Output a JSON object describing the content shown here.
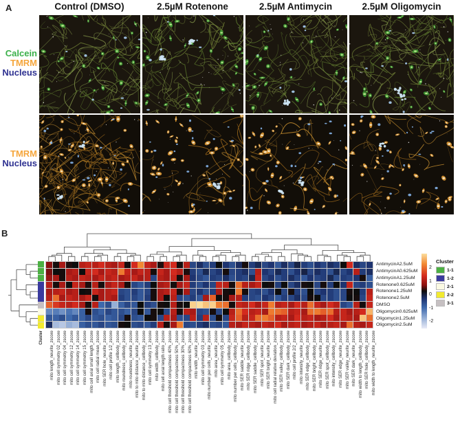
{
  "panel_a": {
    "label": "A",
    "column_headers": [
      "Control (DMSO)",
      "2.5µM Rotenone",
      "2.5µM Antimycin",
      "2.5µM Oligomycin"
    ],
    "row1_labels": [
      {
        "text": "Calcein",
        "color": "#3bb04a"
      },
      {
        "text": "TMRM",
        "color": "#f5a63c"
      },
      {
        "text": "Nucleus",
        "color": "#2e3191"
      }
    ],
    "row2_labels": [
      {
        "text": "TMRM",
        "color": "#f5a63c"
      },
      {
        "text": "Nucleus",
        "color": "#2e3191"
      }
    ]
  },
  "panel_b": {
    "label": "B",
    "cluster_axis_label": "Cluster",
    "legend": {
      "title": "Cluster",
      "entries": [
        {
          "label": "1-1",
          "color": "#4cb043"
        },
        {
          "label": "1-2",
          "color": "#3a3a9e"
        },
        {
          "label": "2-1",
          "color": "#fbfae3"
        },
        {
          "label": "2-2",
          "color": "#f2ea2f"
        },
        {
          "label": "3-1",
          "color": "#c6c0c2"
        }
      ]
    },
    "colorbar": {
      "ticks": [
        "2",
        "1",
        "0",
        "-1",
        "-2"
      ]
    }
  },
  "chart_data": {
    "type": "heatmap",
    "title": "",
    "value_range": [
      -2.5,
      2.5
    ],
    "rows": [
      "AntimycinA2.5uM",
      "AntimycinA0.625uM",
      "AntimycinA1.25uM",
      "Rotenone0.625uM",
      "Rotenone1.25uM",
      "Rotenone2.5uM",
      "DMSO",
      "Oligomycin0.625uM",
      "Oligomycin1.25uM",
      "Oligomycin2.5uM"
    ],
    "row_clusters": [
      "1-1",
      "1-1",
      "1-1",
      "1-2",
      "1-2",
      "1-2",
      "3-1",
      "2-1",
      "2-2",
      "2-2"
    ],
    "columns": [
      "mito length_neurite_zscore",
      "mito cell symmetry 02_zscore",
      "mito cell symmetry 04_zscore",
      "mito cell symmetry 12_zscore",
      "mito cell symmetry 14_zscore",
      "mito cell symmetry 15_zscore",
      "mito cell axial small length_zscore",
      "mito cell radial mean_zscore",
      "mito SER hole_neurite_zscore",
      "mito cell profile 1/2_zscore",
      "mito length_cellbody_zscore",
      "mito roundness_cellbody_zscore",
      "mito roundness_neurite_zscore",
      "mito to mito distance_neurite_zscore",
      "mito to mito distance_cellbody_zscore",
      "mito cell symmetry 13_zscore",
      "mito width_cellbody_zscore",
      "mito cell axial length ratio_zscore",
      "mito cell threshold compactness 40%_zscore",
      "mito cell threshold compactness 50%_zscore",
      "mito cell threshold compactness 30%_zscore",
      "mito cell threshold compactness 60%_zscore",
      "mito width_neurite_zscore",
      "mito cell symmetry 03_zscore",
      "mito number per cells_neurite_zscore",
      "mito area_neurite_zscore",
      "mito cell symmetry 05_zscore",
      "mito area_cellbody_zscore",
      "mito number per cells_cellbody_zscore",
      "mito SER saddle_neurite_zscore",
      "mito SER ridge_cellbody_zscore",
      "mito SER saddle_cellbody_zscore",
      "mito SER spot_neurite_zscore",
      "mito SER bright_neurite_zscore",
      "mito cell radial relative deviation_zscore",
      "mito SER valley_cellbody_zscore",
      "mito SER dark_cellbody_zscore",
      "mito cell profile 2/2_zscore",
      "mito intensity_neurite_zscore",
      "mito SER edge_cellbody_zscore",
      "mito SER bright_cellbody_zscore",
      "mito SER ridge_neurite_zscore",
      "mito SER spot_cellbody_zscore",
      "mito intensity_cellbody_zscore",
      "mito SER edge_neurite_zscore",
      "mito SER valley_neurite_zscore",
      "mito SER dark_neurite_zscore",
      "mito width to length_cellbody_zscore",
      "mito SER hole_cellbody_zscore",
      "mito width to length_neurite_zscore"
    ],
    "values": [
      [
        0.7,
        0.05,
        0.9,
        0.1,
        0.0,
        1.0,
        1.1,
        1.0,
        1.2,
        1.0,
        0.9,
        1.1,
        0.05,
        1.2,
        1.9,
        1.1,
        0.9,
        0.1,
        1.1,
        1.2,
        0.05,
        1.0,
        -0.9,
        -0.6,
        -1.0,
        -0.8,
        0.0,
        -0.7,
        -1.0,
        -0.6,
        0.05,
        -0.8,
        -0.5,
        -0.9,
        -0.7,
        -1.1,
        -0.6,
        -0.9,
        -0.4,
        -0.8,
        -1.0,
        -0.7,
        -0.9,
        -0.6,
        -0.8,
        0.0,
        1.2,
        -0.6,
        -0.9,
        -0.7
      ],
      [
        0.6,
        0.0,
        0.05,
        0.9,
        1.0,
        0.0,
        1.1,
        1.2,
        0.9,
        1.1,
        1.0,
        1.8,
        1.1,
        0.9,
        1.1,
        1.0,
        0.05,
        1.1,
        0.9,
        1.2,
        1.0,
        0.1,
        -0.8,
        -1.0,
        -0.5,
        -0.9,
        -0.7,
        0.05,
        -0.9,
        -0.8,
        -0.6,
        -1.0,
        1.0,
        -0.7,
        -0.9,
        -0.5,
        -0.8,
        -1.0,
        -0.7,
        -0.4,
        -0.9,
        -0.6,
        -0.8,
        -1.0,
        -0.5,
        -0.9,
        -0.7,
        1.0,
        -0.8,
        -0.6
      ],
      [
        0.8,
        0.9,
        0.05,
        1.0,
        0.9,
        1.1,
        1.0,
        0.9,
        1.1,
        1.0,
        1.1,
        0.9,
        1.0,
        1.1,
        0.9,
        1.0,
        -0.9,
        1.0,
        0.9,
        1.1,
        0.05,
        0.9,
        -0.7,
        -0.9,
        -1.1,
        -0.8,
        -0.9,
        -0.6,
        -1.0,
        -0.8,
        -0.9,
        -0.5,
        1.1,
        -0.9,
        -0.7,
        -1.0,
        -0.8,
        -0.6,
        -0.9,
        -1.1,
        -0.7,
        -0.9,
        -0.8,
        -0.5,
        -1.0,
        -0.8,
        -0.9,
        -0.7,
        0.05,
        -1.2
      ],
      [
        1.0,
        0.05,
        0.9,
        0.0,
        1.1,
        0.9,
        0.1,
        1.0,
        0.05,
        0.9,
        1.1,
        0.9,
        0.05,
        -0.9,
        -1.1,
        -0.8,
        0.0,
        0.9,
        1.0,
        0.05,
        0.9,
        1.1,
        -0.8,
        -1.0,
        -0.7,
        -0.9,
        1.1,
        1.0,
        0.05,
        1.7,
        1.0,
        0.9,
        1.1,
        0.0,
        0.05,
        -0.8,
        0.0,
        -0.9,
        -0.6,
        0.05,
        0.0,
        -0.9,
        0.05,
        -0.8,
        0.0,
        -0.7,
        1.1,
        -0.9,
        -0.8,
        -1.0
      ],
      [
        0.9,
        1.0,
        1.1,
        0.9,
        1.0,
        0.0,
        0.05,
        1.1,
        0.9,
        1.0,
        1.1,
        -0.9,
        -1.0,
        -0.8,
        -1.1,
        -0.9,
        0.05,
        0.9,
        1.0,
        1.1,
        0.05,
        0.9,
        -0.9,
        -0.7,
        -1.0,
        -0.8,
        0.9,
        0.05,
        0.0,
        1.8,
        0.05,
        -0.9,
        -0.8,
        -1.0,
        -0.7,
        0.0,
        -0.9,
        0.05,
        -0.8,
        -1.0,
        0.0,
        -0.9,
        -0.7,
        -0.8,
        -1.0,
        -0.9,
        0.05,
        0.0,
        -0.8,
        1.0
      ],
      [
        1.0,
        1.7,
        0.9,
        1.1,
        1.0,
        0.9,
        1.1,
        0.05,
        0.9,
        1.0,
        0.9,
        -0.8,
        -1.0,
        -0.9,
        -1.1,
        -0.8,
        0.05,
        0.9,
        0.0,
        1.0,
        -0.9,
        -1.0,
        -0.8,
        -1.1,
        0.9,
        1.6,
        0.0,
        0.05,
        0.9,
        1.0,
        -0.8,
        -0.9,
        -1.0,
        -0.7,
        -0.9,
        -1.1,
        -0.8,
        -0.9,
        -0.6,
        -0.9,
        0.05,
        0.0,
        -0.9,
        -0.8,
        -1.0,
        -0.9,
        0.0,
        0.05,
        -0.9,
        1.1
      ],
      [
        1.6,
        1.3,
        1.1,
        1.0,
        1.2,
        0.9,
        0.05,
        1.0,
        -1.3,
        -1.0,
        -2.0,
        -1.2,
        -0.9,
        -1.1,
        0.0,
        -0.8,
        -1.0,
        0.05,
        0.0,
        1.0,
        0.05,
        0.0,
        2.4,
        2.5,
        2.3,
        2.4,
        1.8,
        1.7,
        0.05,
        1.1,
        1.0,
        1.2,
        0.9,
        1.1,
        1.8,
        1.0,
        1.1,
        0.9,
        1.2,
        1.0,
        1.7,
        1.1,
        0.9,
        1.2,
        1.0,
        -0.9,
        -1.1,
        1.0,
        0.05,
        1.1
      ],
      [
        -1.6,
        -1.5,
        -1.7,
        -1.4,
        -1.6,
        -1.2,
        0.05,
        -1.0,
        -1.2,
        -0.9,
        -1.1,
        -1.0,
        -1.2,
        -0.9,
        0.0,
        -1.1,
        0.05,
        0.0,
        -0.9,
        1.0,
        0.05,
        1.0,
        0.9,
        -0.9,
        -1.0,
        0.05,
        -0.9,
        0.0,
        1.0,
        1.7,
        1.2,
        1.0,
        1.1,
        0.9,
        1.8,
        1.7,
        1.6,
        1.0,
        1.1,
        0.9,
        1.7,
        1.8,
        1.6,
        1.7,
        1.0,
        1.1,
        0.9,
        1.0,
        1.2,
        2.2
      ],
      [
        -1.1,
        -1.2,
        -1.0,
        -1.3,
        -1.1,
        -1.2,
        -0.9,
        -1.1,
        -1.0,
        -1.2,
        -1.1,
        -0.9,
        0.05,
        -1.0,
        -1.1,
        0.0,
        0.05,
        -0.9,
        1.0,
        0.9,
        -1.0,
        -0.9,
        1.0,
        -0.8,
        1.0,
        -1.0,
        0.05,
        -0.9,
        1.1,
        1.6,
        1.0,
        1.1,
        1.7,
        1.8,
        1.6,
        1.0,
        1.1,
        0.9,
        1.2,
        1.0,
        1.1,
        0.9,
        1.0,
        1.2,
        0.9,
        1.1,
        1.0,
        0.9,
        2.3,
        1.7
      ],
      [
        -0.6,
        -2.1,
        -2.2,
        -2.0,
        -2.1,
        -1.2,
        -1.0,
        -1.1,
        -0.9,
        -1.1,
        -1.0,
        0.05,
        0.0,
        -1.0,
        -0.9,
        -1.1,
        -0.8,
        1.0,
        0.05,
        0.9,
        1.8,
        -0.9,
        -1.0,
        -0.8,
        -0.6,
        -1.0,
        -0.9,
        -1.1,
        1.0,
        0.9,
        1.1,
        1.0,
        0.9,
        1.1,
        1.0,
        1.2,
        0.9,
        1.0,
        1.1,
        0.9,
        1.0,
        1.1,
        0.9,
        1.0,
        1.1,
        0.9,
        1.7,
        1.0,
        0.9,
        1.1
      ]
    ],
    "legend_position": "right",
    "grid": true
  }
}
